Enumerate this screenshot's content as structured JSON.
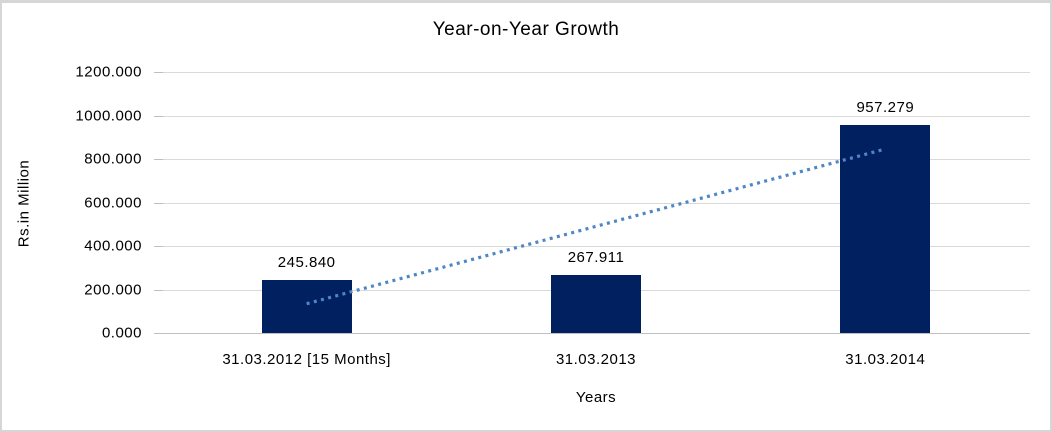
{
  "chart_data": {
    "type": "bar",
    "title": "Year-on-Year Growth",
    "xlabel": "Years",
    "ylabel": "Rs.in Million",
    "categories": [
      "31.03.2012 [15 Months]",
      "31.03.2013",
      "31.03.2014"
    ],
    "values": [
      245.84,
      267.911,
      957.279
    ],
    "data_labels": [
      "245.840",
      "267.911",
      "957.279"
    ],
    "ylim": [
      0,
      1200
    ],
    "ytick_step": 200,
    "ytick_labels": [
      "0.000",
      "200.000",
      "400.000",
      "600.000",
      "800.000",
      "1000.000",
      "1200.000"
    ],
    "grid": true,
    "legend": "none",
    "bar_color": "#002060",
    "gridline_color": "#d9d9d9",
    "trendline": {
      "kind": "linear",
      "style": "dotted",
      "color": "#4e86c6"
    }
  }
}
